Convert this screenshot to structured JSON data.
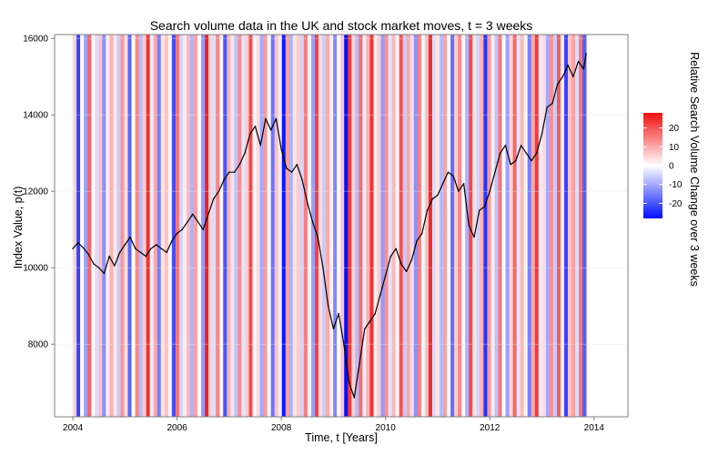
{
  "chart_data": {
    "type": "line",
    "title": "Search volume data in the UK and stock market moves, t = 3 weeks",
    "xlabel": "Time, t [Years]",
    "ylabel": "Index Value, p(t)",
    "xlim": [
      2003.65,
      2014.65
    ],
    "ylim": [
      6100,
      16100
    ],
    "x_ticks": [
      2004,
      2006,
      2008,
      2010,
      2012,
      2014
    ],
    "y_ticks": [
      8000,
      10000,
      12000,
      14000,
      16000
    ],
    "grid": true,
    "series": [
      {
        "x": [
          2004.0,
          2004.1,
          2004.2,
          2004.3,
          2004.4,
          2004.5,
          2004.6,
          2004.7,
          2004.8,
          2004.9,
          2005.0,
          2005.1,
          2005.2,
          2005.3,
          2005.4,
          2005.5,
          2005.6,
          2005.7,
          2005.8,
          2005.9,
          2006.0,
          2006.1,
          2006.2,
          2006.3,
          2006.4,
          2006.5,
          2006.6,
          2006.7,
          2006.8,
          2006.9,
          2007.0,
          2007.1,
          2007.2,
          2007.3,
          2007.4,
          2007.5,
          2007.6,
          2007.7,
          2007.8,
          2007.9,
          2008.0,
          2008.1,
          2008.2,
          2008.3,
          2008.4,
          2008.5,
          2008.6,
          2008.7,
          2008.8,
          2008.9,
          2009.0,
          2009.1,
          2009.2,
          2009.3,
          2009.4,
          2009.5,
          2009.6,
          2009.7,
          2009.8,
          2009.9,
          2010.0,
          2010.1,
          2010.2,
          2010.3,
          2010.4,
          2010.5,
          2010.6,
          2010.7,
          2010.8,
          2010.9,
          2011.0,
          2011.1,
          2011.2,
          2011.3,
          2011.4,
          2011.5,
          2011.6,
          2011.7,
          2011.8,
          2011.9,
          2012.0,
          2012.1,
          2012.2,
          2012.3,
          2012.4,
          2012.5,
          2012.6,
          2012.7,
          2012.8,
          2012.9,
          2013.0,
          2013.1,
          2013.2,
          2013.3,
          2013.4,
          2013.5,
          2013.6,
          2013.7,
          2013.8,
          2013.85
        ],
        "values": [
          10500,
          10650,
          10520,
          10350,
          10100,
          10000,
          9850,
          10300,
          10050,
          10400,
          10600,
          10800,
          10500,
          10400,
          10300,
          10500,
          10600,
          10500,
          10400,
          10700,
          10900,
          11000,
          11200,
          11400,
          11200,
          11000,
          11400,
          11800,
          12000,
          12300,
          12500,
          12500,
          12700,
          13000,
          13500,
          13700,
          13200,
          13900,
          13600,
          13900,
          13100,
          12600,
          12500,
          12700,
          12300,
          11700,
          11200,
          10800,
          10000,
          9000,
          8400,
          8800,
          8000,
          7000,
          6600,
          7500,
          8400,
          8600,
          8800,
          9300,
          9800,
          10300,
          10500,
          10100,
          9900,
          10200,
          10700,
          10900,
          11500,
          11800,
          11900,
          12200,
          12500,
          12400,
          12000,
          12200,
          11100,
          10800,
          11500,
          11600,
          12000,
          12500,
          13000,
          13200,
          12700,
          12800,
          13200,
          13000,
          12800,
          13000,
          13500,
          14200,
          14300,
          14800,
          15000,
          15300,
          15000,
          15400,
          15200,
          15600
        ]
      }
    ],
    "colorbar": {
      "title": "Relative Search Volume Change over 3 weeks",
      "ticks": [
        20,
        10,
        0,
        -10,
        -20
      ],
      "range": [
        -28,
        28
      ],
      "colors": {
        "high": "#f30f0f",
        "mid": "#ffffff",
        "low": "#0010ff"
      }
    },
    "background_bands": {
      "x_start": 2004.0,
      "x_end": 2013.85,
      "count": 140,
      "values": [
        5,
        -22,
        0,
        -11,
        18,
        1,
        -4,
        7,
        -13,
        2,
        9,
        3,
        -6,
        12,
        4,
        -18,
        0,
        14,
        -8,
        6,
        24,
        -2,
        10,
        -15,
        3,
        7,
        1,
        -21,
        16,
        -5,
        2,
        8,
        -9,
        11,
        0,
        -12,
        26,
        5,
        -4,
        14,
        1,
        -20,
        9,
        3,
        -7,
        13,
        -3,
        6,
        21,
        -1,
        4,
        -10,
        12,
        0,
        -16,
        7,
        2,
        -27,
        11,
        -9,
        3,
        6,
        -5,
        15,
        1,
        -11,
        22,
        4,
        -6,
        10,
        2,
        -14,
        0,
        7,
        -28,
        23,
        5,
        -8,
        17,
        -2,
        9,
        24,
        2,
        6,
        -12,
        13,
        -3,
        8,
        1,
        20,
        -6,
        10,
        4,
        -13,
        15,
        -1,
        7,
        25,
        -4,
        3,
        -8,
        11,
        0,
        -17,
        6,
        14,
        1,
        -9,
        21,
        3,
        -5,
        9,
        -24,
        12,
        2,
        -7,
        16,
        0,
        -11,
        5,
        18,
        -3,
        8,
        1,
        -15,
        10,
        23,
        -2,
        4,
        -10,
        13,
        -6,
        19,
        2,
        -22,
        7,
        11,
        -4,
        16,
        -19
      ]
    }
  }
}
